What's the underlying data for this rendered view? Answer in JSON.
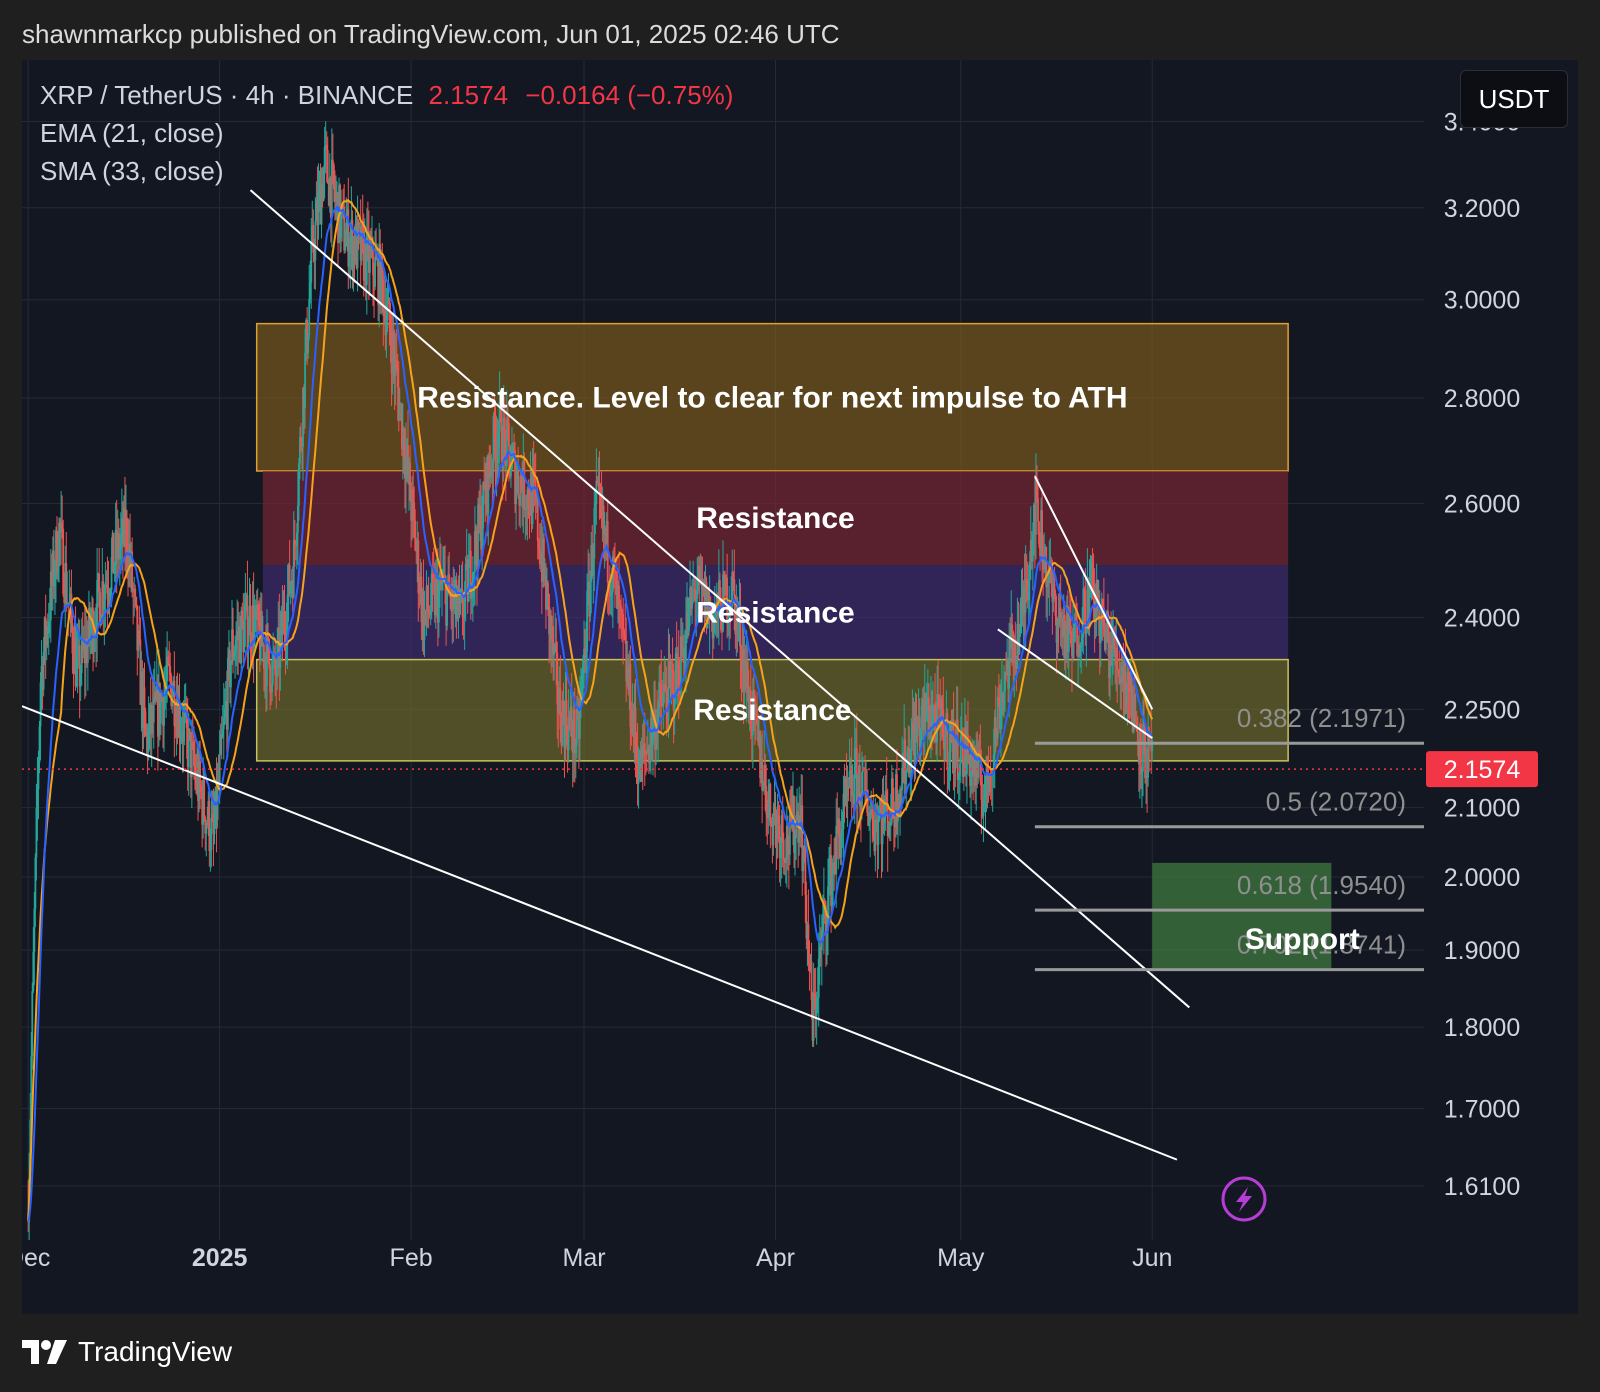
{
  "header": {
    "published_line": "shawnmarkcp published on TradingView.com, Jun 01, 2025 02:46 UTC"
  },
  "legend": {
    "symbol_line": "XRP / TetherUS · 4h · BINANCE",
    "last_price": "2.1574",
    "change": "−0.0164 (−0.75%)",
    "indicators": [
      "EMA (21, close)",
      "SMA (33, close)"
    ]
  },
  "currency_button": "USDT",
  "footer": {
    "brand": "TradingView"
  },
  "colors": {
    "background": "#131722",
    "grid": "#262a35",
    "candle_up": "#26a69a",
    "candle_down": "#ef5350",
    "ema": "#2962ff",
    "sma": "#f7a21b",
    "price_badge": "#f23645",
    "trendline": "#ffffff",
    "zone_gold": "#7a5a1c",
    "zone_red": "#7a2733",
    "zone_purple": "#3f2c70",
    "zone_olive": "#6e6a2a",
    "zone_support": "#3f7a3f",
    "alert_icon": "#b63dd6"
  },
  "icons": {
    "alert": "lightning-icon",
    "logo": "tradingview-logo-icon"
  },
  "chart_data": {
    "type": "candlestick",
    "symbol": "XRP / TetherUS",
    "interval": "4h",
    "exchange": "BINANCE",
    "quote_currency": "USDT",
    "last_price": 2.1574,
    "change": -0.0164,
    "change_pct": -0.75,
    "y_scale": "log",
    "ylim": [
      1.55,
      3.55
    ],
    "y_ticks": [
      {
        "value": 3.4,
        "label": "3.4000"
      },
      {
        "value": 3.2,
        "label": "3.2000"
      },
      {
        "value": 3.0,
        "label": "3.0000"
      },
      {
        "value": 2.8,
        "label": "2.8000"
      },
      {
        "value": 2.6,
        "label": "2.6000"
      },
      {
        "value": 2.4,
        "label": "2.4000"
      },
      {
        "value": 2.25,
        "label": "2.2500"
      },
      {
        "value": 2.1,
        "label": "2.1000"
      },
      {
        "value": 2.0,
        "label": "2.0000"
      },
      {
        "value": 1.9,
        "label": "1.9000"
      },
      {
        "value": 1.8,
        "label": "1.8000"
      },
      {
        "value": 1.7,
        "label": "1.7000"
      },
      {
        "value": 1.61,
        "label": "1.6100"
      }
    ],
    "x_range": [
      "2024-11-30",
      "2025-07-15"
    ],
    "x_ticks": [
      {
        "date": "2024-12-01",
        "label": "Dec",
        "bold": false
      },
      {
        "date": "2025-01-01",
        "label": "2025",
        "bold": true
      },
      {
        "date": "2025-02-01",
        "label": "Feb",
        "bold": false
      },
      {
        "date": "2025-03-01",
        "label": "Mar",
        "bold": false
      },
      {
        "date": "2025-04-01",
        "label": "Apr",
        "bold": false
      },
      {
        "date": "2025-05-01",
        "label": "May",
        "bold": false
      },
      {
        "date": "2025-06-01",
        "label": "Jun",
        "bold": false
      }
    ],
    "grid": true,
    "price_path": [
      [
        "2024-12-01",
        1.58
      ],
      [
        "2024-12-03",
        2.3
      ],
      [
        "2024-12-06",
        2.55
      ],
      [
        "2024-12-09",
        2.3
      ],
      [
        "2024-12-13",
        2.45
      ],
      [
        "2024-12-17",
        2.55
      ],
      [
        "2024-12-20",
        2.2
      ],
      [
        "2024-12-24",
        2.3
      ],
      [
        "2024-12-28",
        2.15
      ],
      [
        "2024-12-31",
        2.05
      ],
      [
        "2025-01-03",
        2.35
      ],
      [
        "2025-01-06",
        2.4
      ],
      [
        "2025-01-10",
        2.3
      ],
      [
        "2025-01-13",
        2.5
      ],
      [
        "2025-01-16",
        3.1
      ],
      [
        "2025-01-18",
        3.3
      ],
      [
        "2025-01-21",
        3.15
      ],
      [
        "2025-01-24",
        3.1
      ],
      [
        "2025-01-27",
        3.05
      ],
      [
        "2025-01-29",
        2.9
      ],
      [
        "2025-02-01",
        2.6
      ],
      [
        "2025-02-03",
        2.4
      ],
      [
        "2025-02-06",
        2.45
      ],
      [
        "2025-02-09",
        2.4
      ],
      [
        "2025-02-12",
        2.55
      ],
      [
        "2025-02-15",
        2.75
      ],
      [
        "2025-02-18",
        2.65
      ],
      [
        "2025-02-21",
        2.6
      ],
      [
        "2025-02-25",
        2.25
      ],
      [
        "2025-02-28",
        2.2
      ],
      [
        "2025-03-03",
        2.6
      ],
      [
        "2025-03-06",
        2.45
      ],
      [
        "2025-03-10",
        2.15
      ],
      [
        "2025-03-13",
        2.25
      ],
      [
        "2025-03-16",
        2.3
      ],
      [
        "2025-03-19",
        2.45
      ],
      [
        "2025-03-22",
        2.4
      ],
      [
        "2025-03-25",
        2.45
      ],
      [
        "2025-03-28",
        2.25
      ],
      [
        "2025-03-31",
        2.1
      ],
      [
        "2025-04-03",
        2.05
      ],
      [
        "2025-04-05",
        2.1
      ],
      [
        "2025-04-07",
        1.8
      ],
      [
        "2025-04-09",
        1.95
      ],
      [
        "2025-04-11",
        2.05
      ],
      [
        "2025-04-14",
        2.15
      ],
      [
        "2025-04-17",
        2.08
      ],
      [
        "2025-04-20",
        2.1
      ],
      [
        "2025-04-23",
        2.2
      ],
      [
        "2025-04-26",
        2.25
      ],
      [
        "2025-04-29",
        2.2
      ],
      [
        "2025-05-02",
        2.18
      ],
      [
        "2025-05-05",
        2.12
      ],
      [
        "2025-05-08",
        2.3
      ],
      [
        "2025-05-11",
        2.4
      ],
      [
        "2025-05-13",
        2.6
      ],
      [
        "2025-05-16",
        2.42
      ],
      [
        "2025-05-19",
        2.35
      ],
      [
        "2025-05-22",
        2.45
      ],
      [
        "2025-05-25",
        2.35
      ],
      [
        "2025-05-28",
        2.3
      ],
      [
        "2025-05-30",
        2.2
      ],
      [
        "2025-06-01",
        2.1574
      ]
    ],
    "zones": [
      {
        "label": "Resistance. Level to clear for next impulse to ATH",
        "from_date": "2025-01-07",
        "to_date": "2025-06-23",
        "low": 2.66,
        "high": 2.95,
        "color": "gold"
      },
      {
        "label": "Resistance",
        "from_date": "2025-01-08",
        "to_date": "2025-06-23",
        "low": 2.49,
        "high": 2.66,
        "color": "red"
      },
      {
        "label": "Resistance",
        "from_date": "2025-01-08",
        "to_date": "2025-06-23",
        "low": 2.33,
        "high": 2.49,
        "color": "purple"
      },
      {
        "label": "Resistance",
        "from_date": "2025-01-07",
        "to_date": "2025-06-23",
        "low": 2.17,
        "high": 2.33,
        "color": "olive"
      },
      {
        "label": "Support",
        "from_date": "2025-06-01",
        "to_date": "2025-06-30",
        "low": 1.876,
        "high": 2.02,
        "color": "support"
      }
    ],
    "fib_levels": [
      {
        "label": "0.382 (2.1971)",
        "value": 2.1971
      },
      {
        "label": "0.5 (2.0720)",
        "value": 2.072
      },
      {
        "label": "0.618 (1.9540)",
        "value": 1.954
      },
      {
        "label": "0.702 (1.8741)",
        "value": 1.8741
      }
    ],
    "trendlines": [
      {
        "from": [
          "2025-01-06",
          3.24
        ],
        "to": [
          "2025-06-07",
          1.825
        ]
      },
      {
        "from": [
          "2024-11-30",
          2.255
        ],
        "to": [
          "2025-06-05",
          1.64
        ]
      },
      {
        "from": [
          "2025-05-13",
          2.65
        ],
        "to": [
          "2025-06-01",
          2.25
        ]
      },
      {
        "from": [
          "2025-05-07",
          2.38
        ],
        "to": [
          "2025-06-01",
          2.205
        ]
      }
    ]
  }
}
